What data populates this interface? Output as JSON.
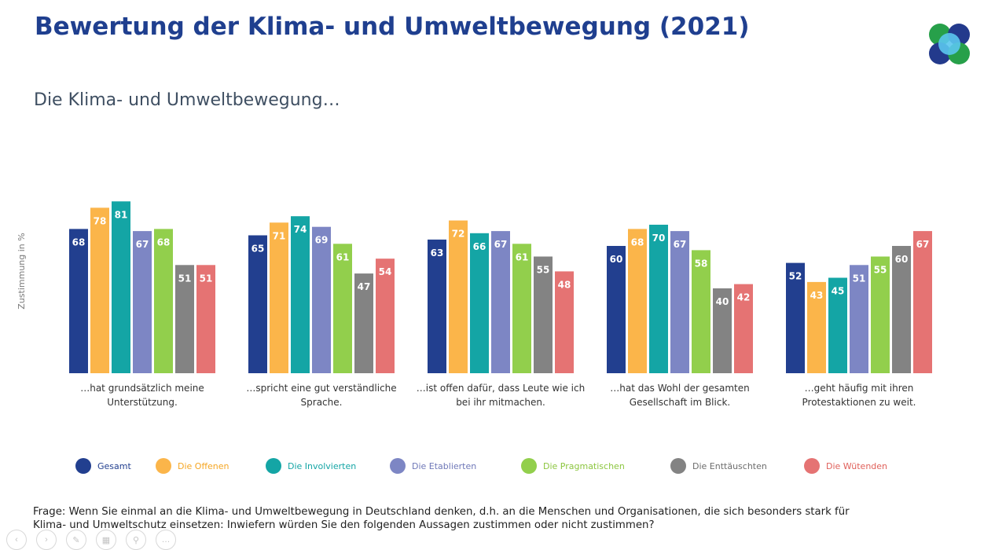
{
  "title": "Bewertung der Klima- und Umweltbewegung (2021)",
  "subtitle": "Die Klima- und Umweltbewegung…",
  "question": "Frage: Wenn Sie einmal an die Klima- und Umweltbewegung in Deutschland denken, d.h. an die Menschen und Organisationen, die sich besonders stark für Klima- und Umweltschutz einsetzen: Inwiefern würden Sie den folgenden Aussagen zustimmen oder nicht zustimmen?",
  "logo_colors": [
    "#27a04a",
    "#233a8c",
    "#5bc6ee"
  ],
  "toolbar_icons": [
    "arrow-left-icon",
    "arrow-right-icon",
    "pen-icon",
    "slides-icon",
    "zoom-icon",
    "more-icon"
  ],
  "chart_data": {
    "type": "bar",
    "ylabel": "Zustimmung in %",
    "ylim": [
      0,
      100
    ],
    "grid": false,
    "legend_position": "bottom",
    "categories": [
      [
        "…hat grundsätzlich meine",
        "Unterstützung."
      ],
      [
        "…spricht eine gut verständliche",
        "Sprache."
      ],
      [
        "…ist offen dafür, dass Leute wie ich",
        "bei ihr mitmachen."
      ],
      [
        "…hat das Wohl der gesamten",
        "Gesellschaft im Blick."
      ],
      [
        "…geht häufig mit ihren",
        "Protestaktionen zu weit."
      ]
    ],
    "series": [
      {
        "name": "Gesamt",
        "color": "#223f8f",
        "label_color": "#223f8f",
        "values": [
          68,
          65,
          63,
          60,
          52
        ]
      },
      {
        "name": "Die Offenen",
        "color": "#fbb54a",
        "label_color": "#f5a623",
        "values": [
          78,
          71,
          72,
          68,
          43
        ]
      },
      {
        "name": "Die Involvierten",
        "color": "#14a5a5",
        "label_color": "#14a5a5",
        "values": [
          81,
          74,
          66,
          70,
          45
        ]
      },
      {
        "name": "Die Etablierten",
        "color": "#7d86c4",
        "label_color": "#6f78b8",
        "values": [
          67,
          69,
          67,
          67,
          51
        ]
      },
      {
        "name": "Die Pragmatischen",
        "color": "#92cf4c",
        "label_color": "#8cc63f",
        "values": [
          68,
          61,
          61,
          58,
          55
        ]
      },
      {
        "name": "Die Enttäuschten",
        "color": "#838383",
        "label_color": "#6d6d6d",
        "values": [
          51,
          47,
          55,
          40,
          60
        ]
      },
      {
        "name": "Die Wütenden",
        "color": "#e57373",
        "label_color": "#e0605a",
        "values": [
          51,
          54,
          48,
          42,
          67
        ]
      }
    ]
  }
}
